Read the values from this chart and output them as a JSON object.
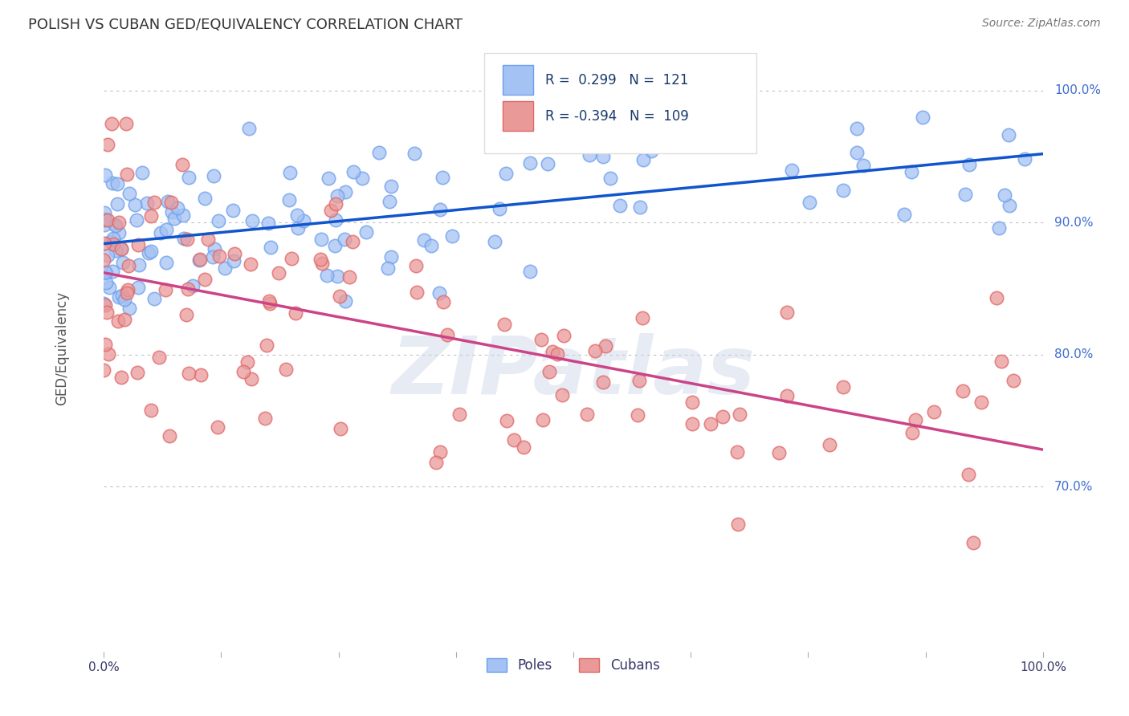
{
  "title": "POLISH VS CUBAN GED/EQUIVALENCY CORRELATION CHART",
  "source": "Source: ZipAtlas.com",
  "ylabel": "GED/Equivalency",
  "blue_color": "#a4c2f4",
  "blue_edge_color": "#6d9eeb",
  "pink_color": "#ea9999",
  "pink_edge_color": "#e06666",
  "blue_line_color": "#1155cc",
  "pink_line_color": "#cc4488",
  "legend_label_color": "#1a3a6b",
  "blue_R": 0.299,
  "pink_R": -0.394,
  "blue_N": 121,
  "pink_N": 109,
  "x_min": 0.0,
  "x_max": 1.0,
  "y_min": 0.575,
  "y_max": 1.035,
  "blue_line_y0": 0.884,
  "blue_line_y1": 0.952,
  "pink_line_y0": 0.862,
  "pink_line_y1": 0.728,
  "watermark": "ZIPatlas",
  "background_color": "#ffffff",
  "grid_color": "#c0c0c0",
  "y_ticks": [
    0.7,
    0.8,
    0.9,
    1.0
  ],
  "y_tick_labels": [
    "70.0%",
    "80.0%",
    "90.0%",
    "100.0%"
  ]
}
